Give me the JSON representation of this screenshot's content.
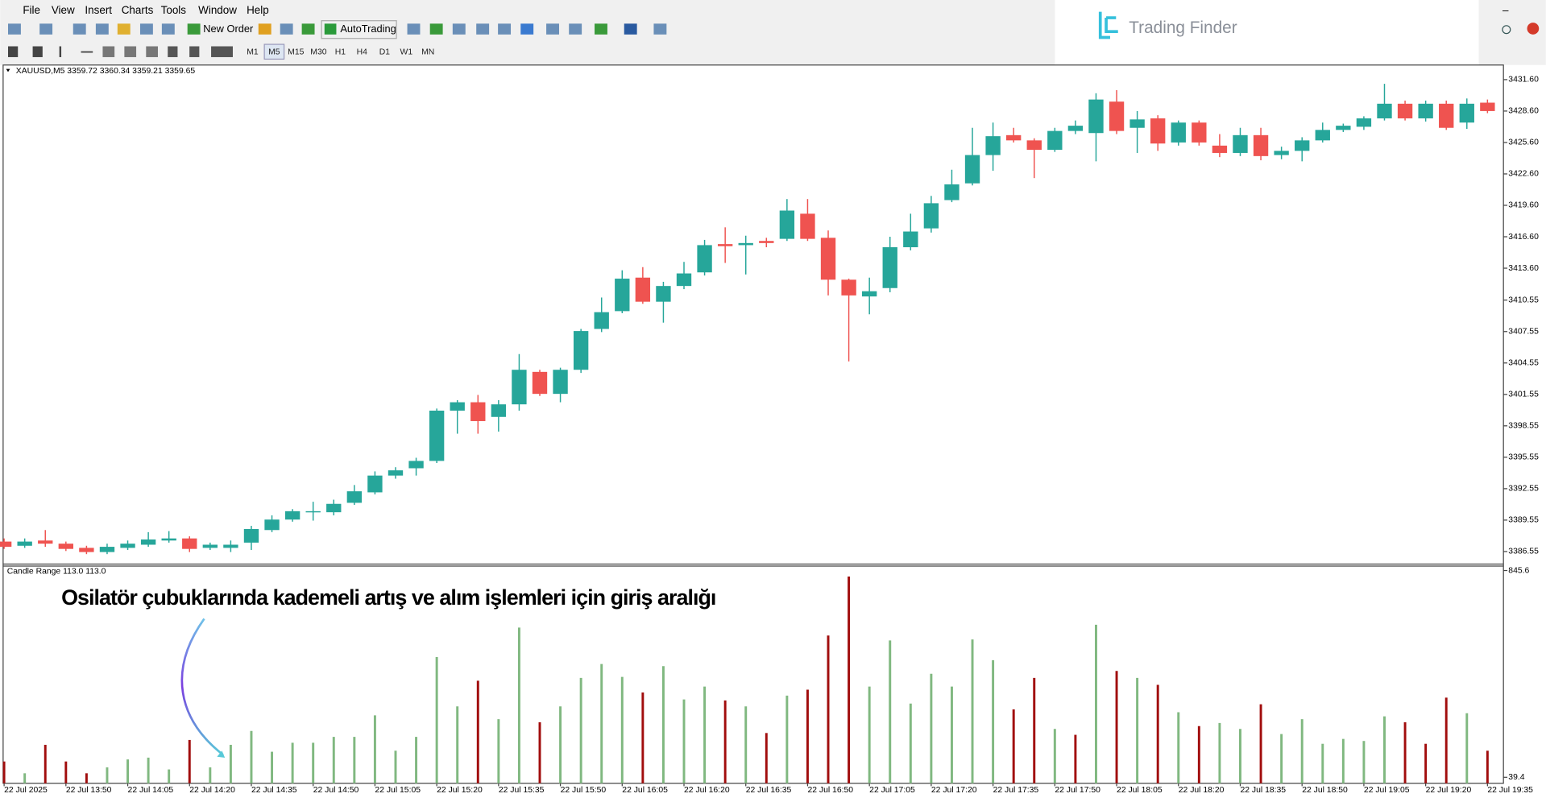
{
  "menu": [
    "File",
    "View",
    "Insert",
    "Charts",
    "Tools",
    "Window",
    "Help"
  ],
  "toolbar": {
    "new_order": "New Order",
    "auto_trading": "AutoTrading",
    "timeframes": [
      "M1",
      "M5",
      "M15",
      "M30",
      "H1",
      "H4",
      "D1",
      "W1",
      "MN"
    ]
  },
  "logo": "Trading Finder",
  "annotation": "Osilatör çubuklarında kademeli artış ve alım işlemleri için giriş aralığı",
  "chart_data": [
    {
      "type": "candlestick",
      "title": "XAUUSD,M5  3359.72 3360.34 3359.21 3359.65",
      "up_color": "#26a69a",
      "down_color": "#ef5350",
      "open": [
        3387.5,
        3387.1,
        3387.6,
        3387.3,
        3386.9,
        3386.5,
        3386.9,
        3387.2,
        3387.6,
        3387.8,
        3386.9,
        3386.9,
        3387.4,
        3388.6,
        3389.6,
        3390.3,
        3390.3,
        3391.2,
        3392.2,
        3393.8,
        3394.5,
        3395.2,
        3400.0,
        3400.8,
        3399.4,
        3400.6,
        3403.7,
        3401.6,
        3403.9,
        3407.8,
        3409.5,
        3412.7,
        3410.4,
        3411.9,
        3413.2,
        3415.9,
        3415.8,
        3416.2,
        3416.4,
        3418.8,
        3416.5,
        3412.5,
        3410.9,
        3411.7,
        3415.6,
        3417.4,
        3420.1,
        3421.7,
        3424.4,
        3426.3,
        3425.8,
        3424.9,
        3426.7,
        3426.5,
        3429.5,
        3427.0,
        3427.9,
        3425.6,
        3427.5,
        3425.3,
        3424.6,
        3426.3,
        3424.4,
        3424.8,
        3425.8,
        3426.8,
        3427.1,
        3427.9,
        3429.3,
        3427.9,
        3429.3,
        3427.5,
        3429.4
      ],
      "high": [
        3387.8,
        3387.8,
        3388.6,
        3387.5,
        3387.1,
        3387.3,
        3387.6,
        3388.4,
        3388.5,
        3388.0,
        3387.4,
        3387.6,
        3389.0,
        3390.0,
        3390.6,
        3391.3,
        3391.5,
        3392.9,
        3394.2,
        3394.6,
        3395.5,
        3400.2,
        3401.0,
        3401.5,
        3401.0,
        3405.4,
        3403.9,
        3404.1,
        3407.8,
        3410.8,
        3413.4,
        3413.7,
        3412.3,
        3414.2,
        3416.3,
        3417.5,
        3416.7,
        3416.5,
        3420.2,
        3420.2,
        3417.2,
        3412.6,
        3412.7,
        3416.6,
        3418.8,
        3420.5,
        3423.0,
        3427.0,
        3427.5,
        3427.0,
        3426.0,
        3427.0,
        3427.7,
        3430.3,
        3430.6,
        3428.6,
        3428.2,
        3427.7,
        3427.7,
        3426.4,
        3427.0,
        3427.0,
        3425.2,
        3426.1,
        3427.5,
        3427.4,
        3428.1,
        3431.2,
        3429.6,
        3429.6,
        3429.6,
        3429.8,
        3429.7
      ],
      "low": [
        3386.8,
        3386.9,
        3387.0,
        3386.6,
        3386.3,
        3386.3,
        3386.7,
        3387.0,
        3387.4,
        3386.5,
        3386.7,
        3386.5,
        3386.7,
        3388.4,
        3389.4,
        3389.5,
        3390.0,
        3391.0,
        3392.0,
        3393.5,
        3393.8,
        3395.0,
        3397.8,
        3397.8,
        3398.0,
        3400.0,
        3401.4,
        3400.8,
        3403.6,
        3407.5,
        3409.3,
        3410.2,
        3408.4,
        3411.6,
        3412.9,
        3414.1,
        3413.0,
        3415.6,
        3416.2,
        3416.2,
        3411.0,
        3404.7,
        3409.2,
        3411.3,
        3415.3,
        3417.0,
        3419.9,
        3421.5,
        3422.9,
        3425.6,
        3422.2,
        3424.7,
        3426.4,
        3423.8,
        3426.4,
        3424.6,
        3424.8,
        3425.3,
        3425.3,
        3424.2,
        3424.3,
        3423.9,
        3424.0,
        3423.8,
        3425.6,
        3426.6,
        3426.8,
        3427.7,
        3427.7,
        3427.6,
        3426.8,
        3426.9,
        3428.4
      ],
      "close": [
        3387.0,
        3387.5,
        3387.3,
        3386.8,
        3386.5,
        3387.0,
        3387.3,
        3387.7,
        3387.8,
        3386.8,
        3387.2,
        3387.2,
        3388.7,
        3389.6,
        3390.4,
        3390.4,
        3391.1,
        3392.3,
        3393.8,
        3394.3,
        3395.2,
        3400.0,
        3400.8,
        3399.0,
        3400.6,
        3403.9,
        3401.6,
        3403.9,
        3407.6,
        3409.4,
        3412.6,
        3410.4,
        3411.9,
        3413.1,
        3415.8,
        3415.7,
        3416.0,
        3416.0,
        3419.1,
        3416.4,
        3412.5,
        3411.0,
        3411.4,
        3415.6,
        3417.1,
        3419.8,
        3421.6,
        3424.4,
        3426.2,
        3425.8,
        3424.9,
        3426.7,
        3427.2,
        3429.7,
        3426.7,
        3427.8,
        3425.5,
        3427.5,
        3425.6,
        3424.6,
        3426.3,
        3424.3,
        3424.8,
        3425.8,
        3426.8,
        3427.2,
        3427.9,
        3429.3,
        3427.9,
        3429.3,
        3427.0,
        3429.3,
        3428.6
      ],
      "ylim": [
        3385.4,
        3432.9
      ],
      "yticks": [
        {
          "value": 3431.6,
          "label": "3431.60"
        },
        {
          "value": 3428.6,
          "label": "3428.60"
        },
        {
          "value": 3425.6,
          "label": "3425.60"
        },
        {
          "value": 3422.6,
          "label": "3422.60"
        },
        {
          "value": 3419.6,
          "label": "3419.60"
        },
        {
          "value": 3416.6,
          "label": "3416.60"
        },
        {
          "value": 3413.6,
          "label": "3413.60"
        },
        3410.55,
        3407.55,
        3404.55,
        3401.55,
        3398.55,
        3395.55,
        3392.55,
        3389.55,
        3386.55
      ],
      "grid": false
    },
    {
      "type": "bar",
      "title": "Candle Range 113.0 113.0",
      "categories": [
        "22 Jul 2025",
        null,
        null,
        "22 Jul 13:50",
        null,
        null,
        "22 Jul 14:05",
        null,
        null,
        "22 Jul 14:20",
        null,
        null,
        "22 Jul 14:35",
        null,
        null,
        "22 Jul 14:50",
        null,
        null,
        "22 Jul 15:05",
        null,
        null,
        "22 Jul 15:20",
        null,
        null,
        "22 Jul 15:35",
        null,
        null,
        "22 Jul 15:50",
        null,
        null,
        "22 Jul 16:05",
        null,
        null,
        "22 Jul 16:20",
        null,
        null,
        "22 Jul 16:35",
        null,
        null,
        "22 Jul 16:50",
        null,
        null,
        "22 Jul 17:05",
        null,
        null,
        "22 Jul 17:20",
        null,
        null,
        "22 Jul 17:35",
        null,
        null,
        "22 Jul 17:50",
        null,
        null,
        "22 Jul 18:05",
        null,
        null,
        "22 Jul 18:20",
        null,
        null,
        "22 Jul 18:35",
        null,
        null,
        "22 Jul 18:50",
        null,
        null,
        "22 Jul 19:05",
        null,
        null,
        "22 Jul 19:20",
        null,
        null,
        "22 Jul 19:35"
      ],
      "values": [
        101,
        55,
        166,
        101,
        55,
        78,
        109,
        116,
        70,
        185,
        78,
        166,
        220,
        139,
        174,
        174,
        197,
        197,
        281,
        143,
        197,
        508,
        316,
        416,
        266,
        623,
        254,
        316,
        427,
        481,
        431,
        370,
        473,
        343,
        393,
        339,
        316,
        212,
        358,
        381,
        592,
        822,
        393,
        573,
        327,
        443,
        393,
        577,
        496,
        304,
        427,
        228,
        205,
        634,
        454,
        427,
        400,
        293,
        239,
        251,
        228,
        324,
        208,
        266,
        170,
        189,
        181,
        277,
        254,
        170,
        350,
        289,
        143
      ],
      "colors": [
        "#a10d0d",
        "#80b880",
        "#a10d0d",
        "#a10d0d",
        "#a10d0d",
        "#80b880",
        "#80b880",
        "#80b880",
        "#80b880",
        "#a10d0d",
        "#80b880",
        "#80b880",
        "#80b880",
        "#80b880",
        "#80b880",
        "#80b880",
        "#80b880",
        "#80b880",
        "#80b880",
        "#80b880",
        "#80b880",
        "#80b880",
        "#80b880",
        "#a10d0d",
        "#80b880",
        "#80b880",
        "#a10d0d",
        "#80b880",
        "#80b880",
        "#80b880",
        "#80b880",
        "#a10d0d",
        "#80b880",
        "#80b880",
        "#80b880",
        "#a10d0d",
        "#80b880",
        "#a10d0d",
        "#80b880",
        "#a10d0d",
        "#a10d0d",
        "#a10d0d",
        "#80b880",
        "#80b880",
        "#80b880",
        "#80b880",
        "#80b880",
        "#80b880",
        "#80b880",
        "#a10d0d",
        "#a10d0d",
        "#80b880",
        "#a10d0d",
        "#80b880",
        "#a10d0d",
        "#80b880",
        "#a10d0d",
        "#80b880",
        "#a10d0d",
        "#80b880",
        "#80b880",
        "#a10d0d",
        "#80b880",
        "#80b880",
        "#80b880",
        "#80b880",
        "#80b880",
        "#80b880",
        "#a10d0d",
        "#a10d0d",
        "#a10d0d",
        "#80b880",
        "#a10d0d"
      ],
      "ylim": [
        16,
        865
      ],
      "yticks": [
        845.6,
        39.4
      ],
      "grid": false
    }
  ]
}
